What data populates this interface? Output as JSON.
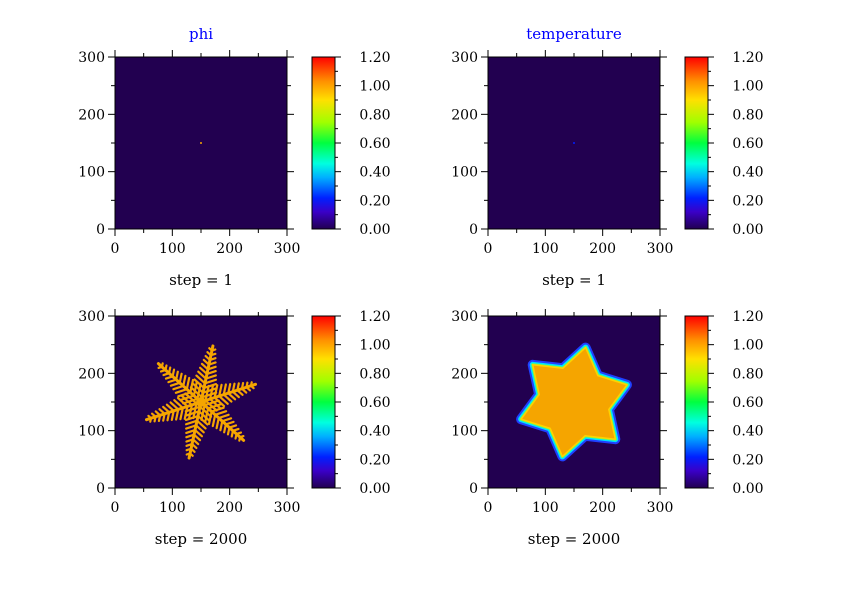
{
  "chart_data": [
    {
      "type": "heatmap",
      "title": "phi",
      "xlabel": "step = 1",
      "xlim": [
        0,
        300
      ],
      "ylim": [
        0,
        300
      ],
      "x_ticks": [
        "0",
        "100",
        "200",
        "300"
      ],
      "y_ticks": [
        "0",
        "100",
        "200",
        "300"
      ],
      "colorbar": {
        "range": [
          0,
          1.2
        ],
        "ticks": [
          "0.00",
          "0.20",
          "0.40",
          "0.60",
          "0.80",
          "1.00",
          "1.20"
        ]
      },
      "background_value": 0.0,
      "features": [
        {
          "shape": "dot",
          "center": [
            150,
            150
          ],
          "radius": 2,
          "value": 0.95
        }
      ]
    },
    {
      "type": "heatmap",
      "title": "temperature",
      "xlabel": "step = 1",
      "xlim": [
        0,
        300
      ],
      "ylim": [
        0,
        300
      ],
      "x_ticks": [
        "0",
        "100",
        "200",
        "300"
      ],
      "y_ticks": [
        "0",
        "100",
        "200",
        "300"
      ],
      "colorbar": {
        "range": [
          0,
          1.2
        ],
        "ticks": [
          "0.00",
          "0.20",
          "0.40",
          "0.60",
          "0.80",
          "1.00",
          "1.20"
        ]
      },
      "background_value": 0.0,
      "features": [
        {
          "shape": "dot",
          "center": [
            150,
            150
          ],
          "radius": 1,
          "value": 0.15
        }
      ]
    },
    {
      "type": "heatmap",
      "title": "",
      "xlabel": "step = 2000",
      "xlim": [
        0,
        300
      ],
      "ylim": [
        0,
        300
      ],
      "x_ticks": [
        "0",
        "100",
        "200",
        "300"
      ],
      "y_ticks": [
        "0",
        "100",
        "200",
        "300"
      ],
      "colorbar": {
        "range": [
          0,
          1.2
        ],
        "ticks": [
          "0.00",
          "0.20",
          "0.40",
          "0.60",
          "0.80",
          "1.00",
          "1.20"
        ]
      },
      "background_value": 0.0,
      "features": [
        {
          "shape": "dendrite",
          "center": [
            150,
            150
          ],
          "arms": 6,
          "arm_length": 100,
          "rotation_deg": 18,
          "value": 0.95
        }
      ]
    },
    {
      "type": "heatmap",
      "title": "",
      "xlabel": "step = 2000",
      "xlim": [
        0,
        300
      ],
      "ylim": [
        0,
        300
      ],
      "x_ticks": [
        "0",
        "100",
        "200",
        "300"
      ],
      "y_ticks": [
        "0",
        "100",
        "200",
        "300"
      ],
      "colorbar": {
        "range": [
          0,
          1.2
        ],
        "ticks": [
          "0.00",
          "0.20",
          "0.40",
          "0.60",
          "0.80",
          "1.00",
          "1.20"
        ]
      },
      "background_value": 0.0,
      "features": [
        {
          "shape": "star",
          "center": [
            150,
            150
          ],
          "points": 6,
          "outer_radius": 97,
          "inner_radius": 62,
          "rotation_deg": 18,
          "value": 0.95
        }
      ]
    }
  ],
  "colors": {
    "background": "#220050",
    "title": "#0000ff",
    "text": "#000000",
    "crystal": "#f5a500"
  }
}
